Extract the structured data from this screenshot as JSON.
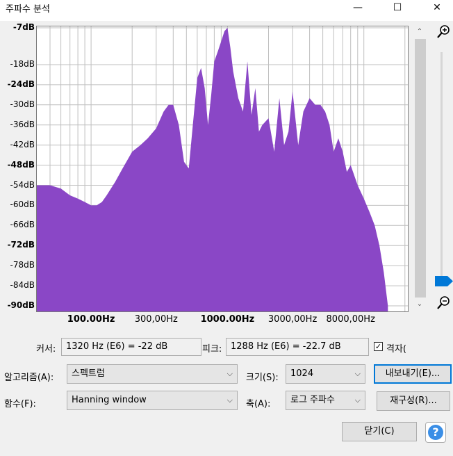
{
  "window": {
    "title": "주파수 분석",
    "minimize_glyph": "—",
    "maximize_glyph": "☐",
    "close_glyph": "✕"
  },
  "plot": {
    "fill_color": "#8a47c6",
    "grid_color": "#bfbfbf",
    "y_labels": [
      {
        "text": "-7dB",
        "bold": true
      },
      {
        "text": "-18dB",
        "bold": false
      },
      {
        "text": "-24dB",
        "bold": true
      },
      {
        "text": "-30dB",
        "bold": false
      },
      {
        "text": "-36dB",
        "bold": false
      },
      {
        "text": "-42dB",
        "bold": false
      },
      {
        "text": "-48dB",
        "bold": true
      },
      {
        "text": "-54dB",
        "bold": false
      },
      {
        "text": "-60dB",
        "bold": false
      },
      {
        "text": "-66dB",
        "bold": false
      },
      {
        "text": "-72dB",
        "bold": true
      },
      {
        "text": "-78dB",
        "bold": false
      },
      {
        "text": "-84dB",
        "bold": false
      },
      {
        "text": "-90dB",
        "bold": true
      }
    ],
    "x_labels": [
      {
        "text": "100.00Hz",
        "bold": true
      },
      {
        "text": "300,00Hz",
        "bold": false
      },
      {
        "text": "1000.00Hz",
        "bold": true
      },
      {
        "text": "3000,00Hz",
        "bold": false
      },
      {
        "text": "8000,00Hz",
        "bold": false
      }
    ]
  },
  "chart_data": {
    "type": "area",
    "x_scale": "log",
    "x": [
      50,
      60,
      70,
      80,
      90,
      100,
      110,
      120,
      130,
      150,
      170,
      200,
      230,
      260,
      300,
      340,
      370,
      400,
      440,
      480,
      520,
      560,
      600,
      640,
      680,
      720,
      760,
      800,
      850,
      900,
      950,
      1000,
      1050,
      1100,
      1200,
      1300,
      1400,
      1500,
      1600,
      1700,
      1800,
      2000,
      2200,
      2400,
      2600,
      2800,
      3000,
      3300,
      3600,
      4000,
      4400,
      4800,
      5200,
      5600,
      6000,
      6500,
      7000,
      7500,
      8000,
      9000,
      10000,
      11000,
      12000,
      13000,
      14000,
      15000
    ],
    "y": [
      -54,
      -55,
      -57,
      -58,
      -59,
      -60,
      -60,
      -59,
      -57,
      -53,
      -49,
      -44,
      -42,
      -40,
      -37,
      -32,
      -30,
      -30,
      -36,
      -47,
      -49,
      -35,
      -22,
      -19,
      -25,
      -36,
      -27,
      -17,
      -14,
      -11,
      -8,
      -7,
      -13,
      -20,
      -28,
      -32,
      -17,
      -33,
      -25,
      -38,
      -36,
      -34,
      -44,
      -28,
      -42,
      -38,
      -26,
      -42,
      -32,
      -28,
      -30,
      -30,
      -32,
      -36,
      -44,
      -40,
      -44,
      -50,
      -48,
      -54,
      -58,
      -62,
      -66,
      -72,
      -80,
      -90
    ],
    "ylim": [
      -90,
      -7
    ],
    "xlim": [
      40,
      21000
    ],
    "grid": true
  },
  "scrollbar": {
    "up_glyph": "⌃",
    "down_glyph": "⌄"
  },
  "controls": {
    "cursor_label": "커서:",
    "cursor_value": "1320 Hz (E6) = -22 dB",
    "peak_label": "피크:",
    "peak_value": "1288 Hz (E6) = -22.7 dB",
    "grid_check_label": "격자(",
    "grid_checked": true,
    "algorithm_label": "알고리즘(A):",
    "algorithm_value": "스펙트럼",
    "size_label": "크기(S):",
    "size_value": "1024",
    "export_button": "내보내기(E)...",
    "function_label": "함수(F):",
    "function_value": "Hanning window",
    "axis_label": "축(A):",
    "axis_value": "로그 주파수",
    "replot_button": "재구성(R)...",
    "close_button": "닫기(C)",
    "help_glyph": "?"
  }
}
